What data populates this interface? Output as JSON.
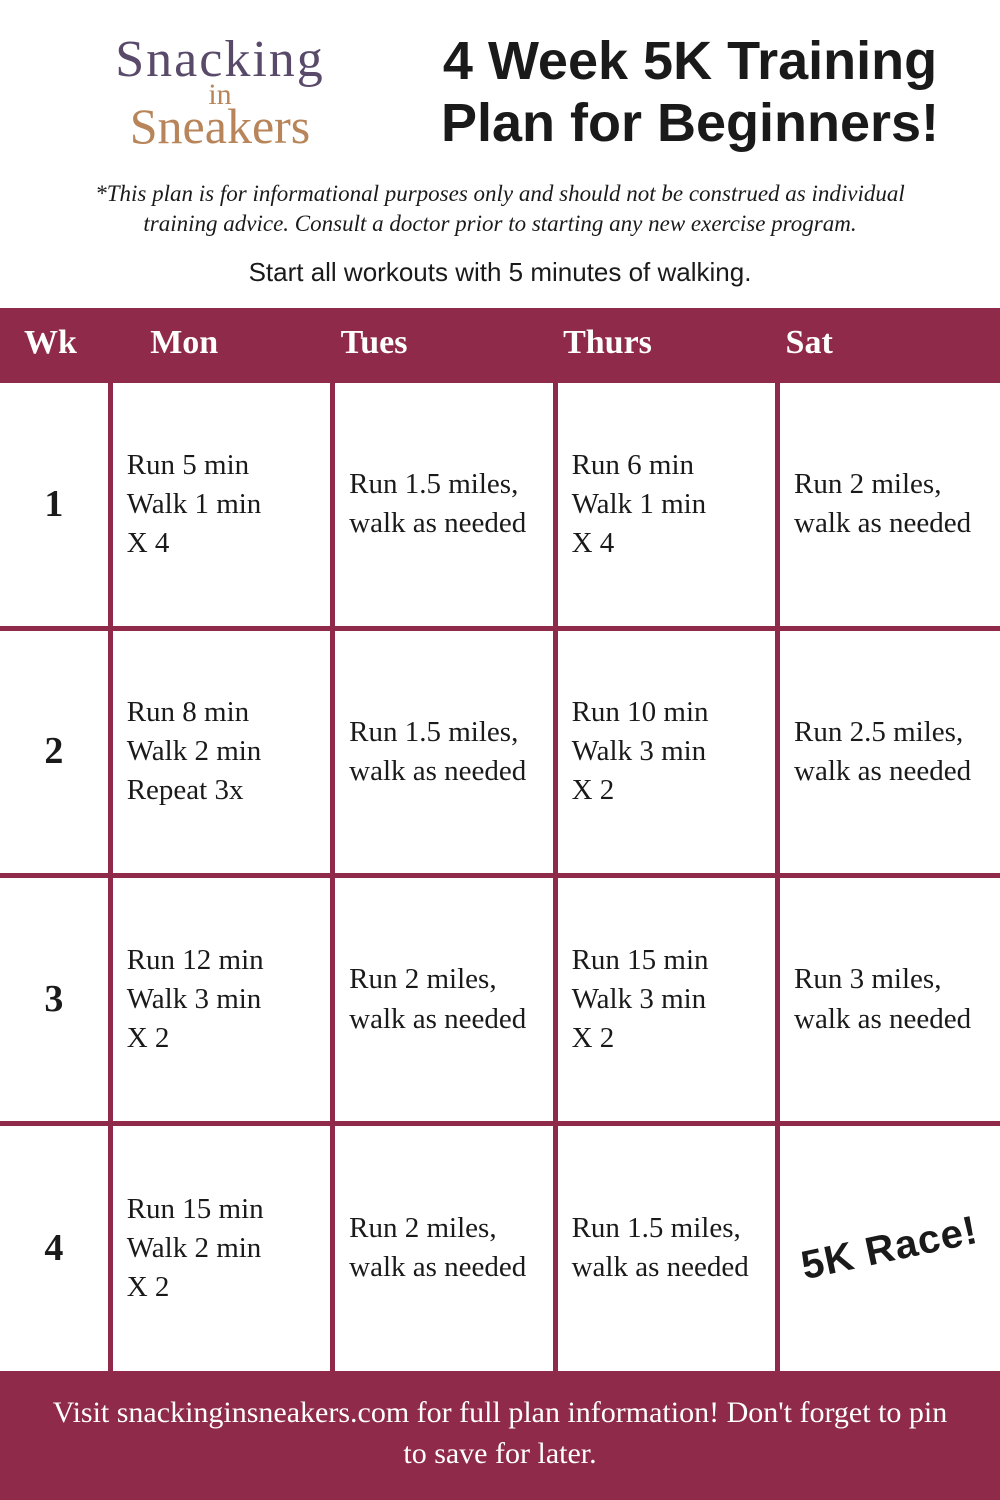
{
  "logo": {
    "line1": "Snacking",
    "line2": "in",
    "line3": "Sneakers"
  },
  "title": "4 Week 5K Training Plan for Beginners!",
  "disclaimer": "*This plan is for informational purposes only and should not be construed as individual training advice. Consult a doctor prior to starting any new exercise program.",
  "instruction": "Start all workouts with 5 minutes of walking.",
  "table": {
    "columns": [
      "Wk",
      "Mon",
      "Tues",
      "Thurs",
      "Sat"
    ],
    "rows": [
      [
        "1",
        "Run 5 min\nWalk 1 min\nX 4",
        "Run 1.5 miles, walk as needed",
        "Run 6 min\nWalk 1 min\nX 4",
        "Run 2 miles, walk as needed"
      ],
      [
        "2",
        "Run 8 min\nWalk 2 min\nRepeat 3x",
        "Run 1.5 miles, walk as needed",
        "Run 10 min\nWalk 3 min\nX 2",
        "Run 2.5 miles, walk as needed"
      ],
      [
        "3",
        "Run 12 min\nWalk 3 min\nX 2",
        "Run 2 miles, walk as needed",
        "Run 15 min\nWalk 3 min\nX 2",
        "Run 3 miles, walk as needed"
      ],
      [
        "4",
        "Run 15 min\nWalk 2 min\nX 2",
        "Run 2 miles, walk as needed",
        "Run 1.5 miles, walk as needed",
        "5K Race!"
      ]
    ],
    "race_cell": {
      "row": 3,
      "col": 4
    }
  },
  "footer": "Visit snackinginsneakers.com for full plan information! Don't forget to pin to save for later.",
  "colors": {
    "accent": "#8f2a4a",
    "text": "#1a1a1a",
    "background": "#ffffff",
    "header_text": "#ffffff"
  },
  "typography": {
    "title_fontsize": 54,
    "disclaimer_fontsize": 23,
    "instruction_fontsize": 26,
    "header_fontsize": 34,
    "cell_fontsize": 29,
    "week_fontsize": 38,
    "footer_fontsize": 30
  }
}
